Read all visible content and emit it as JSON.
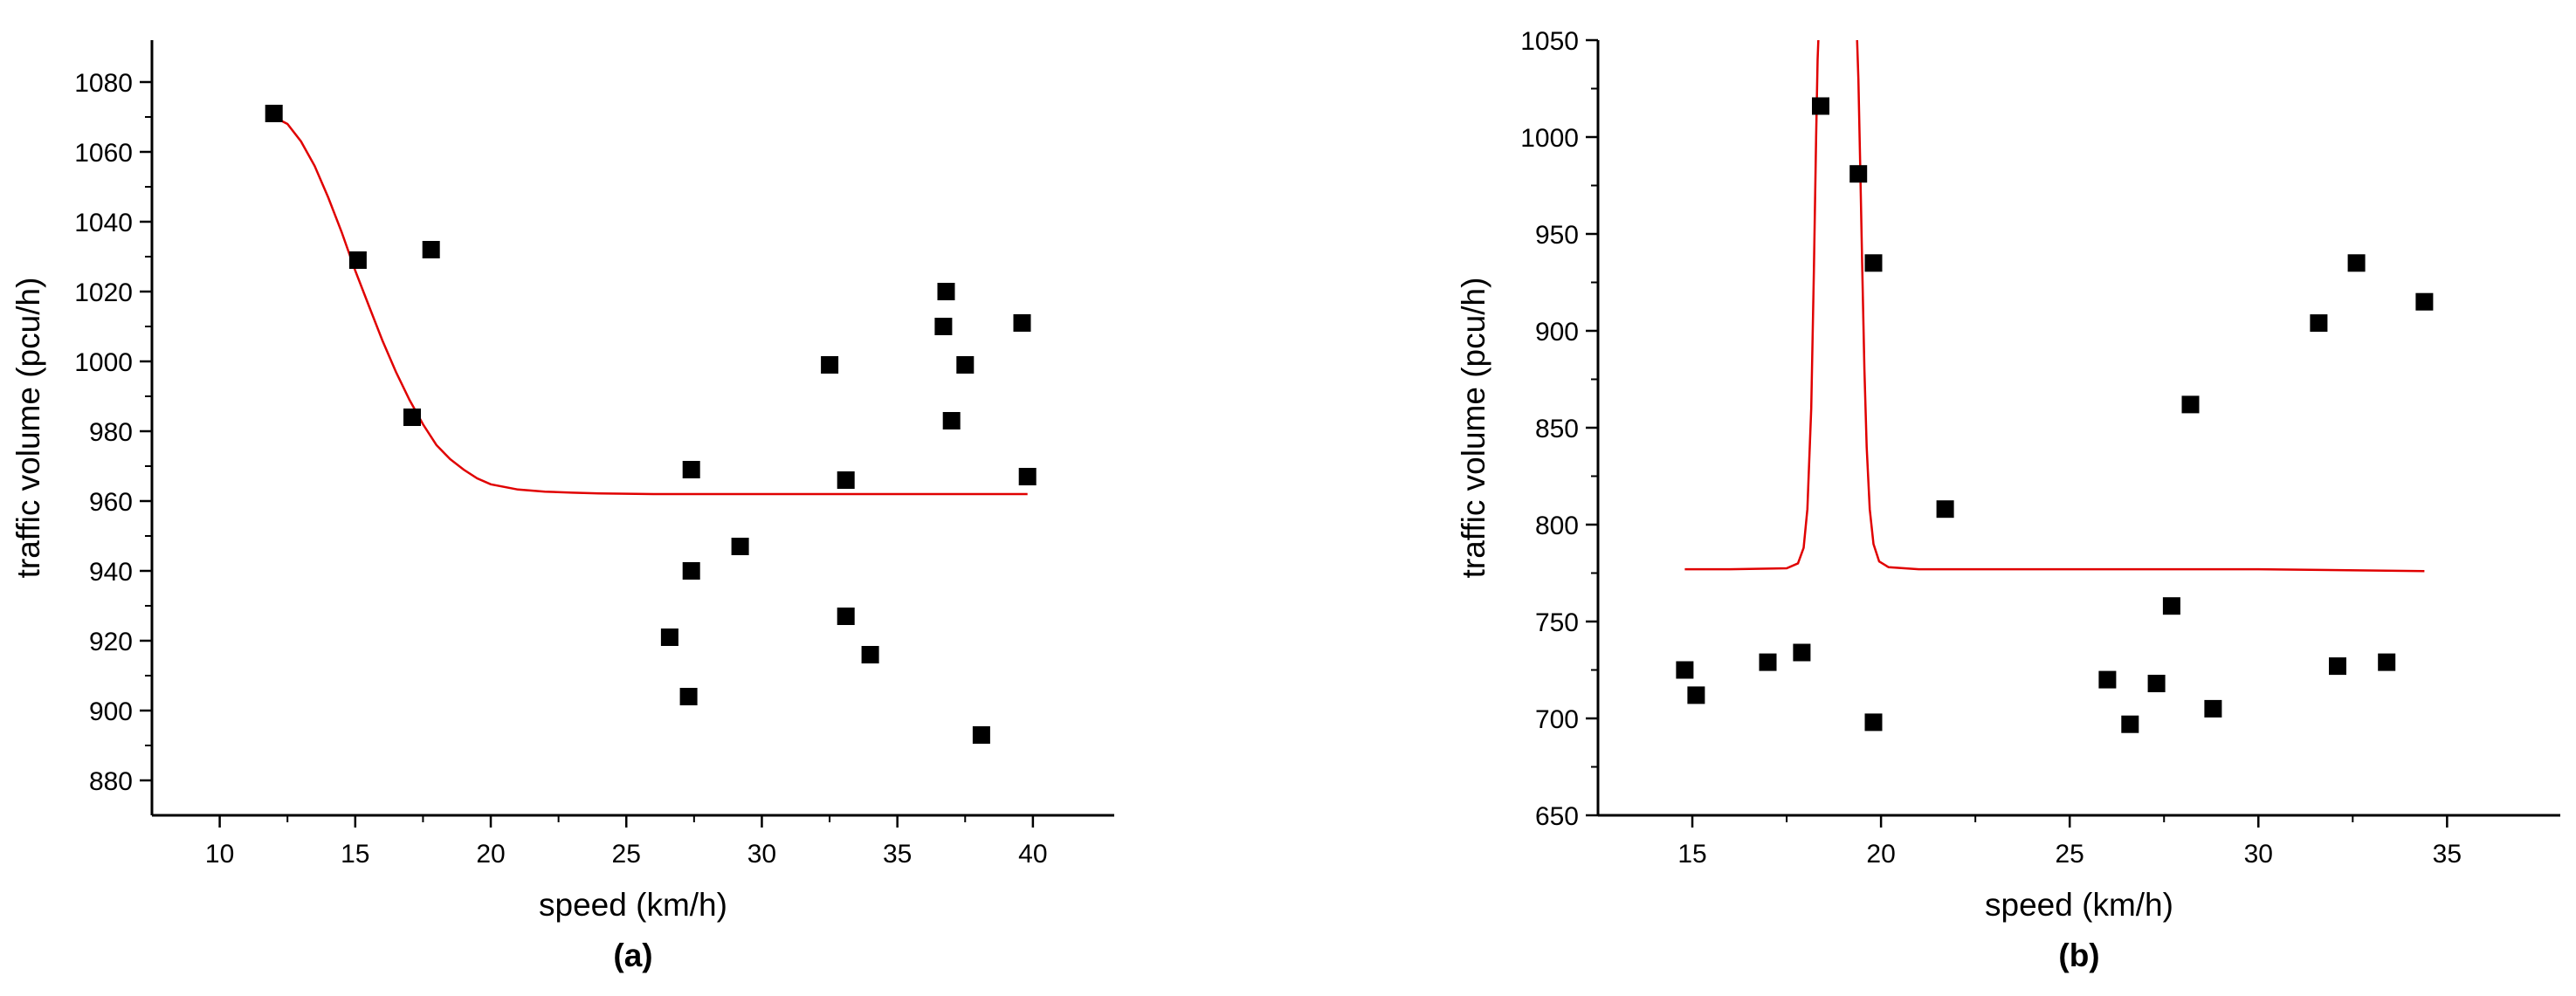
{
  "chart_data": [
    {
      "type": "scatter",
      "panel_label": "(a)",
      "xlabel": "speed (km/h)",
      "ylabel": "traffic volume (pcu/h)",
      "xlim": [
        7.5,
        43
      ],
      "ylim": [
        870,
        1092
      ],
      "xticks": [
        10,
        15,
        20,
        25,
        30,
        35,
        40
      ],
      "yticks": [
        880,
        900,
        920,
        940,
        960,
        980,
        1000,
        1020,
        1040,
        1060,
        1080
      ],
      "marker_color": "#000000",
      "fit_color": "#e00000",
      "points": [
        {
          "x": 12.0,
          "y": 1071
        },
        {
          "x": 15.1,
          "y": 1029
        },
        {
          "x": 17.1,
          "y": 984
        },
        {
          "x": 17.8,
          "y": 1032
        },
        {
          "x": 26.6,
          "y": 921
        },
        {
          "x": 27.3,
          "y": 904
        },
        {
          "x": 27.4,
          "y": 969
        },
        {
          "x": 27.4,
          "y": 940
        },
        {
          "x": 29.2,
          "y": 947
        },
        {
          "x": 32.5,
          "y": 999
        },
        {
          "x": 33.1,
          "y": 966
        },
        {
          "x": 33.1,
          "y": 927
        },
        {
          "x": 34.0,
          "y": 916
        },
        {
          "x": 36.7,
          "y": 1010
        },
        {
          "x": 36.8,
          "y": 1020
        },
        {
          "x": 37.0,
          "y": 983
        },
        {
          "x": 37.5,
          "y": 999
        },
        {
          "x": 38.1,
          "y": 893
        },
        {
          "x": 39.6,
          "y": 1011
        },
        {
          "x": 39.8,
          "y": 967
        }
      ],
      "fit": {
        "x": [
          12.0,
          12.5,
          13,
          13.5,
          14,
          14.5,
          15,
          15.5,
          16,
          16.5,
          17,
          17.5,
          18,
          18.5,
          19,
          19.5,
          20,
          21,
          22,
          23,
          24,
          25,
          26,
          27,
          28,
          30,
          32,
          34,
          36,
          38,
          39.8
        ],
        "y": [
          1070,
          1068,
          1063,
          1056,
          1047,
          1037,
          1026,
          1016,
          1006,
          997,
          989,
          982,
          976,
          972,
          969,
          966.5,
          964.8,
          963.3,
          962.7,
          962.4,
          962.2,
          962.1,
          962.0,
          962.0,
          962.0,
          962.0,
          962.0,
          962.0,
          962.0,
          962.0,
          962.0
        ]
      }
    },
    {
      "type": "scatter",
      "panel_label": "(b)",
      "xlabel": "speed (km/h)",
      "ylabel": "traffic volume (pcu/h)",
      "xlim": [
        12.5,
        38
      ],
      "ylim": [
        650,
        1050
      ],
      "xticks": [
        15,
        20,
        25,
        30,
        35
      ],
      "yticks": [
        650,
        700,
        750,
        800,
        850,
        900,
        950,
        1000,
        1050
      ],
      "marker_color": "#000000",
      "fit_color": "#e00000",
      "points": [
        {
          "x": 14.8,
          "y": 725
        },
        {
          "x": 15.1,
          "y": 712
        },
        {
          "x": 17.0,
          "y": 729
        },
        {
          "x": 17.9,
          "y": 734
        },
        {
          "x": 18.4,
          "y": 1016
        },
        {
          "x": 19.4,
          "y": 981
        },
        {
          "x": 19.8,
          "y": 935
        },
        {
          "x": 19.8,
          "y": 698
        },
        {
          "x": 21.7,
          "y": 808
        },
        {
          "x": 26.0,
          "y": 720
        },
        {
          "x": 26.6,
          "y": 697
        },
        {
          "x": 27.3,
          "y": 718
        },
        {
          "x": 27.7,
          "y": 758
        },
        {
          "x": 28.2,
          "y": 862
        },
        {
          "x": 28.8,
          "y": 705
        },
        {
          "x": 31.6,
          "y": 904
        },
        {
          "x": 32.1,
          "y": 727
        },
        {
          "x": 32.6,
          "y": 935
        },
        {
          "x": 33.4,
          "y": 729
        },
        {
          "x": 34.4,
          "y": 915
        }
      ],
      "fit": {
        "x": [
          14.8,
          16,
          17.5,
          17.8,
          17.95,
          18.05,
          18.15,
          18.22,
          18.28,
          18.32,
          18.36,
          19.35,
          19.4,
          19.45,
          19.5,
          19.56,
          19.62,
          19.7,
          19.8,
          19.95,
          20.2,
          21,
          25,
          30,
          34.4
        ],
        "y": [
          777,
          777,
          777.5,
          780,
          788,
          808,
          860,
          930,
          1000,
          1040,
          1060,
          1060,
          1030,
          985,
          935,
          880,
          840,
          808,
          790,
          781,
          778,
          777,
          777,
          777,
          776
        ]
      }
    }
  ]
}
